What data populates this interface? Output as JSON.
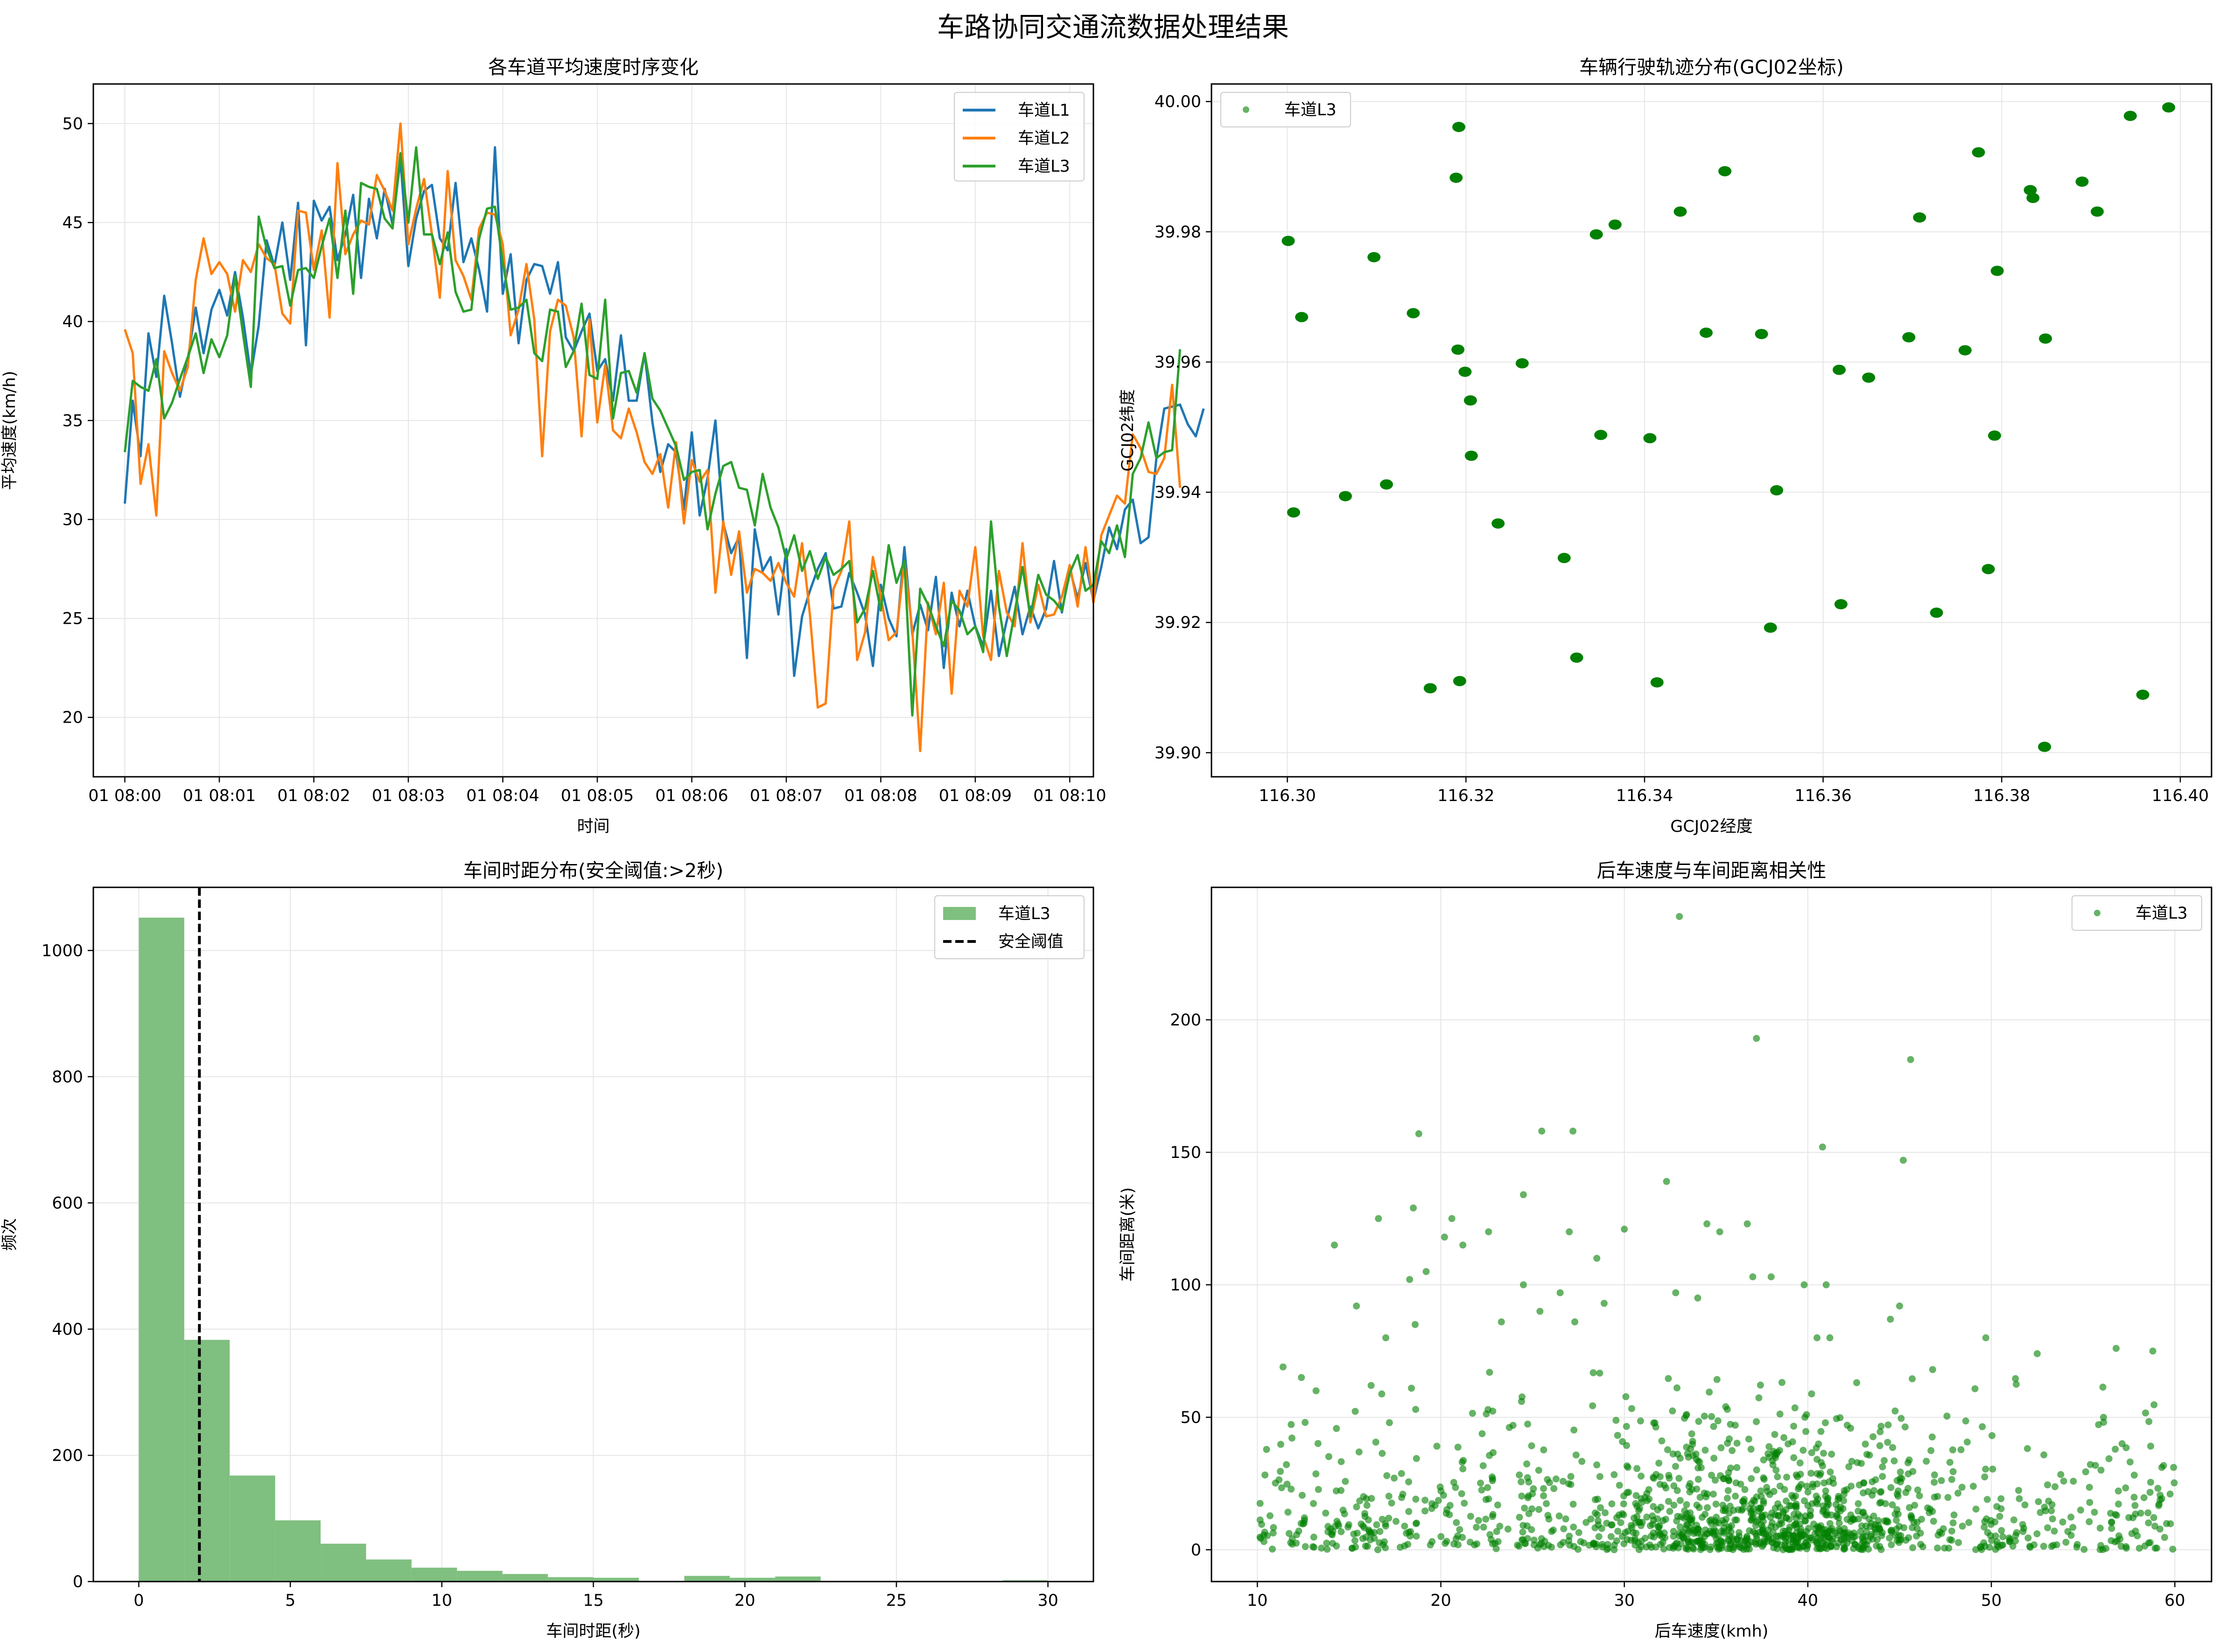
{
  "figure": {
    "suptitle": "车路协同交通流数据处理结果"
  },
  "colors": {
    "l1": "#1f77b4",
    "l2": "#ff7f0e",
    "l3": "#2ca02c",
    "scatter": "#008000",
    "hist": "#7fbf7f"
  },
  "chart_data": [
    {
      "type": "line",
      "title": "各车道平均速度时序变化",
      "xlabel": "时间",
      "ylabel": "平均速度(km/h)",
      "xticks": [
        "01 08:00",
        "01 08:01",
        "01 08:02",
        "01 08:03",
        "01 08:04",
        "01 08:05",
        "01 08:06",
        "01 08:07",
        "01 08:08",
        "01 08:09",
        "01 08:10"
      ],
      "yticks": [
        20,
        25,
        30,
        35,
        40,
        45,
        50
      ],
      "ylim": [
        17,
        52
      ],
      "xlim_seconds": [
        -20,
        615
      ],
      "x_seconds_step": 5,
      "grid": true,
      "legend": "top-right",
      "series": [
        {
          "name": "车道L1",
          "color": "#1f77b4",
          "values": [
            30.8,
            36,
            33.2,
            39.4,
            37.2,
            41.3,
            38.9,
            36.2,
            38.1,
            40.7,
            38.4,
            40.6,
            41.6,
            40.3,
            42.5,
            40.2,
            37.3,
            39.8,
            44.1,
            42.8,
            45,
            42.1,
            46,
            38.8,
            46.1,
            45.1,
            45.8,
            43.1,
            44.4,
            46.4,
            42.2,
            46.2,
            44.2,
            46.7,
            44.9,
            48.2,
            42.8,
            45.2,
            46.6,
            46.9,
            44.2,
            43.6,
            47,
            43,
            44.2,
            42.6,
            40.5,
            48.8,
            41.4,
            43.4,
            38.9,
            42.1,
            42.9,
            42.8,
            41.4,
            43,
            39.2,
            38.5,
            39.5,
            40.4,
            37.5,
            38.1,
            36,
            39.3,
            36,
            36,
            38.4,
            34.9,
            32.4,
            33.8,
            33.4,
            30.5,
            34.4,
            30.2,
            32.1,
            35,
            29.8,
            28.3,
            29.1,
            23,
            29.5,
            27.4,
            28.1,
            25.2,
            28.5,
            22.1,
            25.1,
            26.4,
            27.5,
            28.3,
            25.5,
            25.6,
            27.3,
            26.3,
            25.2,
            22.6,
            26.7,
            25,
            24.1,
            28.6,
            24.2,
            25.7,
            24.4,
            27.1,
            22.5,
            26.3,
            24.6,
            26.4,
            24.6,
            23.6,
            26.4,
            23.1,
            24.9,
            26.6,
            24.2,
            25.6,
            24.5,
            25.5,
            27.9,
            25.3,
            27.5,
            26,
            27.8,
            25.9,
            27.6,
            29.6,
            28.5,
            30.5,
            31,
            28.8,
            29.1,
            33.1,
            35.6,
            35.7,
            35.8,
            34.8,
            34.2,
            35.6
          ]
        },
        {
          "name": "车道L2",
          "color": "#ff7f0e",
          "values": [
            39.6,
            38.4,
            31.8,
            33.8,
            30.2,
            38.5,
            37.4,
            36.5,
            37.7,
            42.1,
            44.2,
            42.4,
            43,
            42.4,
            40.5,
            43.1,
            42.5,
            43.9,
            43.2,
            42.9,
            40.4,
            39.9,
            45.6,
            45.5,
            42.6,
            44.6,
            40.2,
            48,
            43.4,
            44.4,
            45.1,
            44.9,
            47.4,
            46.6,
            45.6,
            50,
            43.9,
            45.7,
            47.2,
            44.4,
            41.2,
            47.6,
            43.1,
            42.3,
            41.1,
            44.7,
            45.5,
            45.4,
            43.9,
            39.3,
            40.6,
            42.9,
            40.1,
            33.2,
            39.5,
            41.1,
            40.8,
            39.2,
            34.2,
            40.1,
            34.9,
            37.8,
            34.5,
            34.1,
            35.6,
            34.4,
            32.9,
            32.3,
            33.3,
            30.6,
            33.9,
            29.8,
            33,
            31.9,
            32.5,
            26.3,
            29.9,
            27.2,
            29.4,
            26.3,
            27.5,
            27.3,
            26.9,
            27.8,
            26.8,
            26.1,
            28.8,
            25.2,
            20.5,
            20.7,
            26.5,
            27.4,
            29.9,
            22.9,
            24.3,
            28.1,
            26.1,
            23.9,
            24.3,
            27.9,
            24.4,
            18.3,
            25.8,
            24.2,
            26.8,
            21.2,
            26.4,
            25.6,
            28.6,
            24.1,
            22.9,
            27.4,
            25.3,
            24.6,
            28.8,
            24.8,
            26.7,
            25.1,
            25.2,
            26.1,
            27.7,
            25.6,
            28.6,
            25.8,
            29.2,
            30.2,
            31.2,
            30.8,
            34.3,
            33.6,
            32.4,
            32.3,
            33.1,
            36.8,
            31.6
          ]
        },
        {
          "name": "车道L3",
          "color": "#2ca02c",
          "values": [
            33.4,
            37,
            36.7,
            36.5,
            38.1,
            35.1,
            35.9,
            37.1,
            38.2,
            39.4,
            37.4,
            39.1,
            38.2,
            39.3,
            42.3,
            39.4,
            36.7,
            45.3,
            43.7,
            42.7,
            42.8,
            40.8,
            42.6,
            42.7,
            42.2,
            43.8,
            45.2,
            42.2,
            45.6,
            41.4,
            47,
            46.8,
            46.7,
            45.2,
            44.7,
            48.5,
            45,
            48.8,
            44.4,
            44.4,
            42.9,
            44.5,
            41.5,
            40.5,
            40.6,
            44.2,
            45.7,
            45.8,
            43,
            40.6,
            40.7,
            41.1,
            38.4,
            38,
            40.6,
            40.5,
            37.7,
            38.5,
            40.9,
            37.3,
            37.1,
            41.1,
            35.1,
            37.4,
            37.5,
            36.4,
            38.4,
            36.1,
            35.5,
            34.6,
            33.7,
            32,
            32.4,
            32.5,
            29.5,
            31.3,
            32.7,
            32.9,
            31.6,
            31.5,
            29.7,
            32.3,
            30.6,
            29.6,
            28,
            29.2,
            27.4,
            28.4,
            27,
            28.1,
            27.2,
            27.5,
            27.9,
            24.8,
            25.5,
            27.4,
            25.4,
            28.7,
            26.8,
            27.9,
            20.1,
            26.5,
            25.7,
            24.6,
            23.6,
            25.9,
            25.4,
            24.2,
            24.6,
            23.3,
            29.9,
            25.6,
            23.1,
            25.3,
            27.6,
            25.1,
            27.2,
            26.2,
            25.9,
            25.4,
            27.3,
            28.2,
            26.4,
            26.7,
            28.9,
            28.3,
            29.7,
            28.1,
            32.3,
            33.1,
            34.9,
            33.1,
            33.4,
            33.5,
            38.6
          ]
        }
      ]
    },
    {
      "type": "scatter",
      "title": "车辆行驶轨迹分布(GCJ02坐标)",
      "xlabel": "GCJ02经度",
      "ylabel": "GCJ02纬度",
      "xlim": [
        116.2915,
        116.4035
      ],
      "ylim": [
        39.8963,
        40.0027
      ],
      "xticks": [
        116.3,
        116.32,
        116.34,
        116.36,
        116.38,
        116.4
      ],
      "xtick_labels": [
        "116.30",
        "116.32",
        "116.34",
        "116.36",
        "116.38",
        "116.40"
      ],
      "yticks": [
        39.9,
        39.92,
        39.94,
        39.96,
        39.98,
        40.0
      ],
      "ytick_labels": [
        "39.90",
        "39.92",
        "39.94",
        "39.96",
        "39.98",
        "40.00"
      ],
      "grid": true,
      "legend": "top-left",
      "series": [
        {
          "name": "车道L3",
          "color": "#008000",
          "points": [
            [
              116.3001,
              39.9786
            ],
            [
              116.3007,
              39.9369
            ],
            [
              116.3016,
              39.9669
            ],
            [
              116.3065,
              39.9394
            ],
            [
              116.3097,
              39.9761
            ],
            [
              116.3111,
              39.9412
            ],
            [
              116.3141,
              39.9675
            ],
            [
              116.316,
              39.9099
            ],
            [
              116.3189,
              39.9883
            ],
            [
              116.3191,
              39.9619
            ],
            [
              116.3192,
              39.9961
            ],
            [
              116.3193,
              39.911
            ],
            [
              116.3199,
              39.9585
            ],
            [
              116.3205,
              39.9541
            ],
            [
              116.3206,
              39.9456
            ],
            [
              116.3236,
              39.9352
            ],
            [
              116.3263,
              39.9598
            ],
            [
              116.331,
              39.9299
            ],
            [
              116.3324,
              39.9146
            ],
            [
              116.3346,
              39.9796
            ],
            [
              116.3351,
              39.9488
            ],
            [
              116.3367,
              39.9811
            ],
            [
              116.3406,
              39.9483
            ],
            [
              116.3414,
              39.9108
            ],
            [
              116.344,
              39.9831
            ],
            [
              116.3469,
              39.9645
            ],
            [
              116.349,
              39.9893
            ],
            [
              116.3531,
              39.9643
            ],
            [
              116.3541,
              39.9192
            ],
            [
              116.3548,
              39.9403
            ],
            [
              116.3618,
              39.9588
            ],
            [
              116.362,
              39.9228
            ],
            [
              116.3651,
              39.9576
            ],
            [
              116.3696,
              39.9638
            ],
            [
              116.3708,
              39.9822
            ],
            [
              116.3727,
              39.9215
            ],
            [
              116.3759,
              39.9618
            ],
            [
              116.3774,
              39.9922
            ],
            [
              116.3785,
              39.9282
            ],
            [
              116.3792,
              39.9487
            ],
            [
              116.3795,
              39.974
            ],
            [
              116.3832,
              39.9864
            ],
            [
              116.3835,
              39.9852
            ],
            [
              116.3848,
              39.9009
            ],
            [
              116.3849,
              39.9636
            ],
            [
              116.389,
              39.9877
            ],
            [
              116.3907,
              39.9831
            ],
            [
              116.3944,
              39.9978
            ],
            [
              116.3958,
              39.9089
            ],
            [
              116.3987,
              39.9991
            ]
          ]
        }
      ]
    },
    {
      "type": "bar",
      "subtype": "histogram",
      "title": "车间时距分布(安全阈值:>2秒)",
      "xlabel": "车间时距(秒)",
      "ylabel": "频次",
      "xlim": [
        -1.5,
        31.5
      ],
      "ylim": [
        0,
        1100
      ],
      "xticks": [
        0,
        5,
        10,
        15,
        20,
        25,
        30
      ],
      "yticks": [
        0,
        200,
        400,
        600,
        800,
        1000
      ],
      "grid": true,
      "legend": "top-right",
      "bin_edges": [
        0,
        1.5,
        3,
        4.5,
        6,
        7.5,
        9,
        10.5,
        12,
        13.5,
        15,
        16.5,
        18,
        19.5,
        21,
        22.5,
        24,
        25.5,
        27,
        28.5,
        30
      ],
      "counts": [
        1052,
        383,
        168,
        97,
        60,
        35,
        22,
        17,
        12,
        7,
        6,
        1,
        9,
        6,
        8,
        1,
        1,
        1,
        1,
        2
      ],
      "series_name": "车道L3",
      "color": "#7fbf7f",
      "threshold": {
        "value": 2,
        "name": "安全阈值"
      }
    },
    {
      "type": "scatter",
      "title": "后车速度与车间距离相关性",
      "xlabel": "后车速度(kmh)",
      "ylabel": "车间距离(米)",
      "xlim": [
        7.5,
        62.0
      ],
      "ylim": [
        -12,
        250
      ],
      "xticks": [
        10,
        20,
        30,
        40,
        50,
        60
      ],
      "yticks": [
        0,
        50,
        100,
        150,
        200
      ],
      "grid": true,
      "legend": "top-right",
      "n_dense_points": 1400,
      "series": [
        {
          "name": "车道L3",
          "color": "#008000",
          "outliers": [
            [
              33,
              239
            ],
            [
              37.2,
              193
            ],
            [
              45.6,
              185
            ],
            [
              25.5,
              158
            ],
            [
              27.2,
              158
            ],
            [
              18.8,
              157
            ],
            [
              40.8,
              152
            ],
            [
              45.2,
              147
            ],
            [
              32.3,
              139
            ],
            [
              24.5,
              134
            ],
            [
              18.5,
              129
            ],
            [
              16.6,
              125
            ],
            [
              20.6,
              125
            ],
            [
              22.6,
              120
            ],
            [
              27,
              120
            ],
            [
              30,
              121
            ],
            [
              34.5,
              123
            ],
            [
              35.2,
              120
            ],
            [
              36.7,
              123
            ],
            [
              14.2,
              115
            ],
            [
              21.2,
              115
            ],
            [
              28.5,
              110
            ],
            [
              20.2,
              118
            ],
            [
              19.2,
              105
            ],
            [
              18.3,
              102
            ],
            [
              26.5,
              97
            ],
            [
              24.5,
              100
            ],
            [
              37,
              103
            ],
            [
              39.8,
              100
            ],
            [
              41,
              100
            ],
            [
              45,
              92
            ],
            [
              15.4,
              92
            ],
            [
              25.4,
              90
            ],
            [
              32.8,
              97
            ],
            [
              34,
              95
            ],
            [
              38,
              103
            ],
            [
              28.9,
              93
            ],
            [
              27.3,
              86
            ],
            [
              23.3,
              86
            ],
            [
              11.4,
              69
            ],
            [
              13.2,
              60
            ],
            [
              16.2,
              62
            ],
            [
              12.4,
              65
            ],
            [
              44.5,
              87
            ],
            [
              40.5,
              80
            ],
            [
              41.2,
              80
            ],
            [
              49.7,
              80
            ],
            [
              52.5,
              74
            ],
            [
              56.8,
              76
            ],
            [
              58.8,
              75
            ],
            [
              46.8,
              68
            ],
            [
              17,
              80
            ],
            [
              18.6,
              85
            ]
          ]
        }
      ]
    }
  ]
}
